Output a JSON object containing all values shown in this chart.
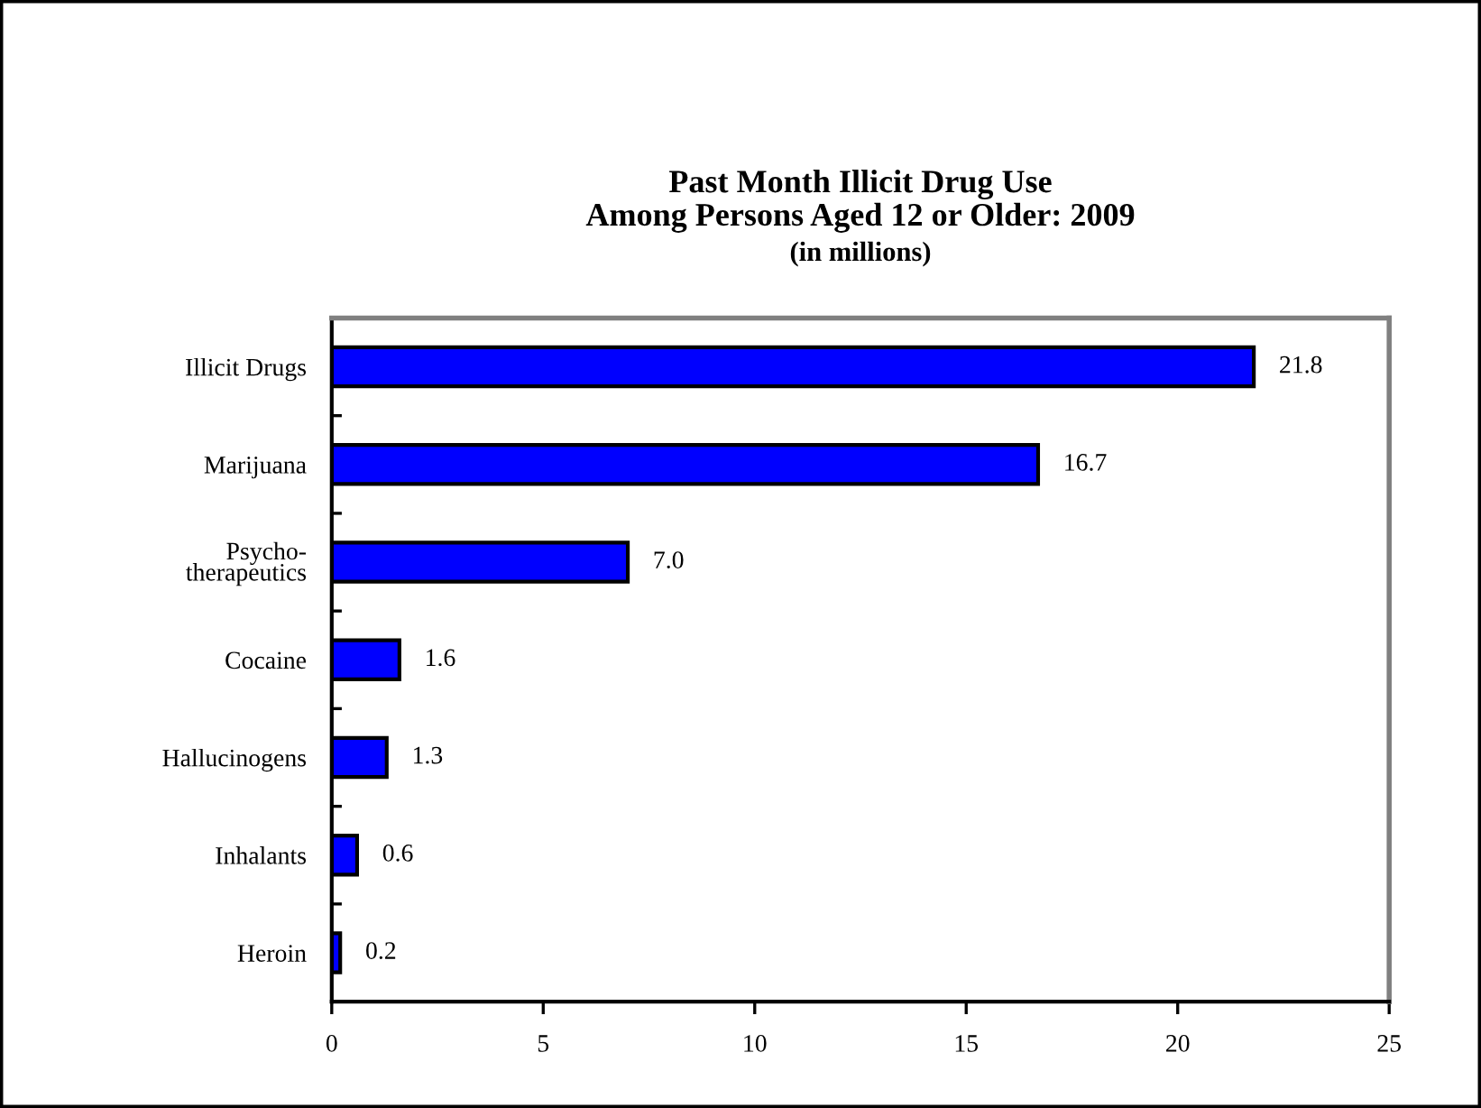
{
  "chart_data": {
    "type": "bar",
    "orientation": "horizontal",
    "title": "Past Month Illicit Drug Use\nAmong Persons Aged 12 or Older: 2009",
    "subtitle": "(in millions)",
    "categories": [
      "Illicit Drugs",
      "Marijuana",
      "Psycho-\ntherapeutics",
      "Cocaine",
      "Hallucinogens",
      "Inhalants",
      "Heroin"
    ],
    "values": [
      21.8,
      16.7,
      7.0,
      1.6,
      1.3,
      0.6,
      0.2
    ],
    "value_labels": [
      "21.8",
      "16.7",
      "7.0",
      "1.6",
      "1.3",
      "0.6",
      "0.2"
    ],
    "color": "#0000ff",
    "xlim": [
      0,
      25
    ],
    "xticks": [
      0,
      5,
      10,
      15,
      20,
      25
    ],
    "grid": false,
    "legend": false
  }
}
